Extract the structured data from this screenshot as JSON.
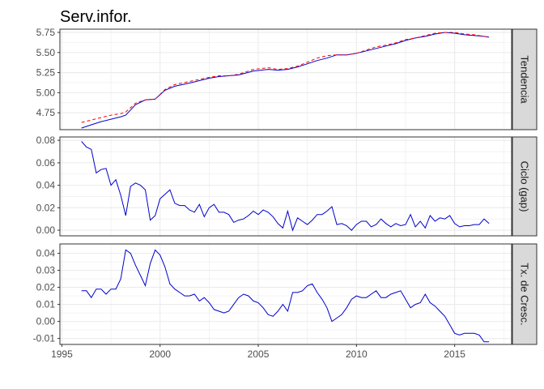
{
  "chart_data": {
    "type": "line",
    "title": "Serv.infor.",
    "x_axis": {
      "ticks": [
        1995,
        2000,
        2005,
        2010,
        2015
      ],
      "tick_labels": [
        "1995",
        "2000",
        "2005",
        "2010",
        "2015"
      ],
      "range": [
        1994.9,
        2017.9
      ]
    },
    "colors": {
      "actual": "#0000cc",
      "trend": "#ff0000",
      "strip_bg": "#d9d9d9",
      "grid": "#ebebeb"
    },
    "panels": [
      {
        "label": "Tendencia",
        "ylim": [
          4.54,
          5.79
        ],
        "yticks": [
          4.75,
          5.0,
          5.25,
          5.5,
          5.75
        ],
        "ytick_labels": [
          "4.75",
          "5.00",
          "5.25",
          "5.50",
          "5.75"
        ],
        "series": [
          {
            "style": "solid",
            "color": "#0000cc",
            "x": [
              1996.0,
              1996.5,
              1997.0,
              1997.5,
              1998.0,
              1998.25,
              1998.75,
              1999.25,
              1999.75,
              2000.25,
              2000.75,
              2001.5,
              2002.5,
              2003.0,
              2003.5,
              2004.0,
              2004.75,
              2005.5,
              2006.0,
              2006.5,
              2007.0,
              2007.5,
              2008.0,
              2008.5,
              2009.0,
              2009.5,
              2010.0,
              2010.5,
              2011.0,
              2011.5,
              2012.0,
              2012.5,
              2013.0,
              2013.5,
              2014.0,
              2014.5,
              2015.0,
              2015.5,
              2016.0,
              2016.5,
              2016.75
            ],
            "y": [
              4.56,
              4.6,
              4.64,
              4.67,
              4.7,
              4.72,
              4.85,
              4.91,
              4.92,
              5.03,
              5.08,
              5.12,
              5.18,
              5.2,
              5.21,
              5.22,
              5.27,
              5.29,
              5.28,
              5.29,
              5.32,
              5.36,
              5.4,
              5.43,
              5.47,
              5.47,
              5.49,
              5.52,
              5.55,
              5.58,
              5.61,
              5.65,
              5.68,
              5.7,
              5.73,
              5.75,
              5.74,
              5.72,
              5.71,
              5.7,
              5.69
            ]
          },
          {
            "style": "dashed",
            "color": "#ff0000",
            "x": [
              1996.0,
              1996.5,
              1997.0,
              1997.5,
              1998.0,
              1998.25,
              1998.75,
              1999.25,
              1999.75,
              2000.25,
              2000.75,
              2001.5,
              2002.5,
              2003.0,
              2003.5,
              2004.0,
              2004.75,
              2005.5,
              2006.0,
              2006.5,
              2007.0,
              2007.5,
              2008.0,
              2008.5,
              2009.0,
              2009.5,
              2010.0,
              2010.5,
              2011.0,
              2011.5,
              2012.0,
              2012.5,
              2013.0,
              2013.5,
              2014.0,
              2014.5,
              2015.0,
              2015.5,
              2016.0,
              2016.5,
              2016.75
            ],
            "y": [
              4.63,
              4.66,
              4.69,
              4.72,
              4.74,
              4.76,
              4.87,
              4.91,
              4.92,
              5.04,
              5.1,
              5.14,
              5.19,
              5.21,
              5.21,
              5.23,
              5.29,
              5.31,
              5.29,
              5.3,
              5.33,
              5.38,
              5.43,
              5.46,
              5.47,
              5.47,
              5.49,
              5.53,
              5.57,
              5.59,
              5.62,
              5.66,
              5.68,
              5.71,
              5.74,
              5.75,
              5.75,
              5.73,
              5.72,
              5.7,
              5.69
            ]
          }
        ]
      },
      {
        "label": "Ciclo (gap)",
        "ylim": [
          -0.005,
          0.083
        ],
        "yticks": [
          0.0,
          0.02,
          0.04,
          0.06,
          0.08
        ],
        "ytick_labels": [
          "0.00",
          "0.02",
          "0.04",
          "0.06",
          "0.08"
        ],
        "series": [
          {
            "style": "solid",
            "color": "#0000cc",
            "x": [
              1996.0,
              1996.25,
              1996.5,
              1996.75,
              1997.0,
              1997.25,
              1997.5,
              1997.75,
              1998.0,
              1998.25,
              1998.5,
              1998.75,
              1999.0,
              1999.25,
              1999.5,
              1999.75,
              2000.0,
              2000.25,
              2000.5,
              2000.75,
              2001.0,
              2001.25,
              2001.5,
              2001.75,
              2002.0,
              2002.25,
              2002.5,
              2002.75,
              2003.0,
              2003.25,
              2003.5,
              2003.75,
              2004.0,
              2004.25,
              2004.5,
              2004.75,
              2005.0,
              2005.25,
              2005.5,
              2005.75,
              2006.0,
              2006.25,
              2006.5,
              2006.75,
              2007.0,
              2007.25,
              2007.5,
              2007.75,
              2008.0,
              2008.25,
              2008.5,
              2008.75,
              2009.0,
              2009.25,
              2009.5,
              2009.75,
              2010.0,
              2010.25,
              2010.5,
              2010.75,
              2011.0,
              2011.25,
              2011.5,
              2011.75,
              2012.0,
              2012.25,
              2012.5,
              2012.75,
              2013.0,
              2013.25,
              2013.5,
              2013.75,
              2014.0,
              2014.25,
              2014.5,
              2014.75,
              2015.0,
              2015.25,
              2015.5,
              2015.75,
              2016.0,
              2016.25,
              2016.5,
              2016.75
            ],
            "y": [
              0.079,
              0.074,
              0.072,
              0.051,
              0.054,
              0.055,
              0.04,
              0.045,
              0.031,
              0.013,
              0.039,
              0.042,
              0.04,
              0.036,
              0.009,
              0.013,
              0.028,
              0.032,
              0.036,
              0.024,
              0.022,
              0.022,
              0.018,
              0.016,
              0.023,
              0.012,
              0.02,
              0.023,
              0.016,
              0.016,
              0.014,
              0.007,
              0.009,
              0.01,
              0.013,
              0.017,
              0.014,
              0.018,
              0.016,
              0.012,
              0.006,
              0.002,
              0.017,
              0.0,
              0.011,
              0.008,
              0.005,
              0.009,
              0.014,
              0.014,
              0.017,
              0.021,
              0.005,
              0.006,
              0.004,
              0.0,
              0.005,
              0.008,
              0.008,
              0.003,
              0.005,
              0.01,
              0.006,
              0.003,
              0.006,
              0.004,
              0.005,
              0.014,
              0.003,
              0.008,
              0.002,
              0.013,
              0.008,
              0.011,
              0.01,
              0.013,
              0.006,
              0.003,
              0.004,
              0.004,
              0.005,
              0.005,
              0.01,
              0.006
            ]
          }
        ]
      },
      {
        "label": "Tx. de Cresc.",
        "ylim": [
          -0.0135,
          0.0455
        ],
        "yticks": [
          -0.01,
          0.0,
          0.01,
          0.02,
          0.03,
          0.04
        ],
        "ytick_labels": [
          "-0.01",
          "0.00",
          "0.01",
          "0.02",
          "0.03",
          "0.04"
        ],
        "series": [
          {
            "style": "solid",
            "color": "#0000cc",
            "x": [
              1996.0,
              1996.25,
              1996.5,
              1996.75,
              1997.0,
              1997.25,
              1997.5,
              1997.75,
              1998.0,
              1998.25,
              1998.5,
              1998.75,
              1999.0,
              1999.25,
              1999.5,
              1999.75,
              2000.0,
              2000.25,
              2000.5,
              2000.75,
              2001.0,
              2001.25,
              2001.5,
              2001.75,
              2002.0,
              2002.25,
              2002.5,
              2002.75,
              2003.0,
              2003.25,
              2003.5,
              2003.75,
              2004.0,
              2004.25,
              2004.5,
              2004.75,
              2005.0,
              2005.25,
              2005.5,
              2005.75,
              2006.0,
              2006.25,
              2006.5,
              2006.75,
              2007.0,
              2007.25,
              2007.5,
              2007.75,
              2008.0,
              2008.25,
              2008.5,
              2008.75,
              2009.0,
              2009.25,
              2009.5,
              2009.75,
              2010.0,
              2010.25,
              2010.5,
              2010.75,
              2011.0,
              2011.25,
              2011.5,
              2011.75,
              2012.0,
              2012.25,
              2012.5,
              2012.75,
              2013.0,
              2013.25,
              2013.5,
              2013.75,
              2014.0,
              2014.25,
              2014.5,
              2014.75,
              2015.0,
              2015.25,
              2015.5,
              2015.75,
              2016.0,
              2016.25,
              2016.5,
              2016.75
            ],
            "y": [
              0.018,
              0.018,
              0.014,
              0.019,
              0.019,
              0.016,
              0.019,
              0.019,
              0.025,
              0.042,
              0.04,
              0.033,
              0.027,
              0.021,
              0.034,
              0.042,
              0.039,
              0.032,
              0.022,
              0.019,
              0.017,
              0.015,
              0.015,
              0.016,
              0.012,
              0.014,
              0.011,
              0.007,
              0.006,
              0.005,
              0.006,
              0.01,
              0.014,
              0.016,
              0.015,
              0.012,
              0.011,
              0.008,
              0.004,
              0.003,
              0.006,
              0.01,
              0.006,
              0.017,
              0.017,
              0.018,
              0.021,
              0.022,
              0.017,
              0.013,
              0.008,
              0.0,
              0.002,
              0.004,
              0.008,
              0.013,
              0.015,
              0.014,
              0.014,
              0.016,
              0.018,
              0.014,
              0.014,
              0.016,
              0.017,
              0.018,
              0.013,
              0.008,
              0.01,
              0.011,
              0.016,
              0.011,
              0.009,
              0.006,
              0.003,
              -0.002,
              -0.007,
              -0.008,
              -0.007,
              -0.007,
              -0.007,
              -0.008,
              -0.012,
              -0.012
            ]
          }
        ]
      }
    ]
  }
}
